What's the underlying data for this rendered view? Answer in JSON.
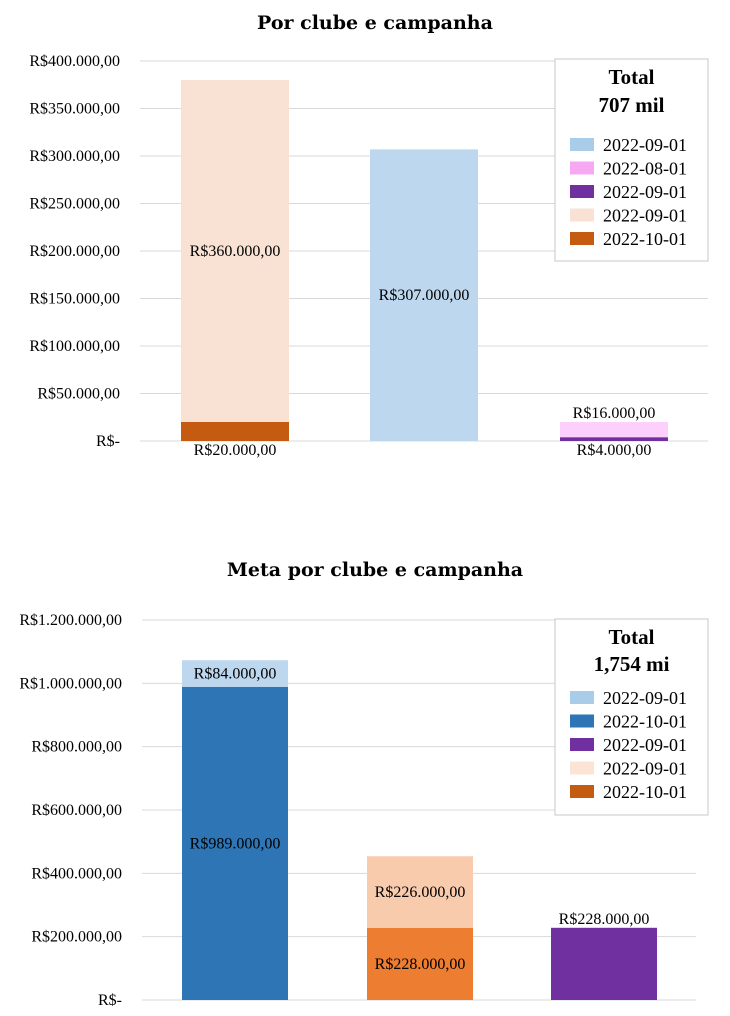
{
  "chart_data": [
    {
      "type": "bar",
      "stacked": true,
      "title": "Por clube e campanha",
      "ylim": [
        0,
        400000
      ],
      "y_ticks": [
        {
          "value": 0,
          "label": "R$-"
        },
        {
          "value": 50000,
          "label": "R$50.000,00"
        },
        {
          "value": 100000,
          "label": "R$100.000,00"
        },
        {
          "value": 150000,
          "label": "R$150.000,00"
        },
        {
          "value": 200000,
          "label": "R$200.000,00"
        },
        {
          "value": 250000,
          "label": "R$250.000,00"
        },
        {
          "value": 300000,
          "label": "R$300.000,00"
        },
        {
          "value": 350000,
          "label": "R$350.000,00"
        },
        {
          "value": 400000,
          "label": "R$400.000,00"
        }
      ],
      "grid": true,
      "legend_position": "top-right",
      "legend_title": [
        "Total",
        "707 mil"
      ],
      "legend": [
        {
          "label": "2022-09-01",
          "color": "#a9cce9"
        },
        {
          "label": "2022-08-01",
          "color": "#f7a8f3"
        },
        {
          "label": "2022-09-01",
          "color": "#7030a0"
        },
        {
          "label": "2022-09-01",
          "color": "#f9e2d4"
        },
        {
          "label": "2022-10-01",
          "color": "#c55a11"
        }
      ],
      "bars": [
        {
          "segments": [
            {
              "value": 20000,
              "label": "R$20.000,00",
              "color": "#c55a11",
              "label_pos": "below"
            },
            {
              "value": 360000,
              "label": "R$360.000,00",
              "color": "#f9e2d4",
              "label_pos": "center"
            }
          ]
        },
        {
          "segments": [
            {
              "value": 307000,
              "label": "R$307.000,00",
              "color": "#bdd7ee",
              "label_pos": "center"
            }
          ]
        },
        {
          "segments": [
            {
              "value": 4000,
              "label": "R$4.000,00",
              "color": "#7030a0",
              "label_pos": "below"
            },
            {
              "value": 16000,
              "label": "R$16.000,00",
              "color": "#fcd0fb",
              "label_pos": "above"
            }
          ]
        }
      ]
    },
    {
      "type": "bar",
      "stacked": true,
      "title": "Meta por clube e campanha",
      "ylim": [
        0,
        1200000
      ],
      "y_ticks": [
        {
          "value": 0,
          "label": "R$-"
        },
        {
          "value": 200000,
          "label": "R$200.000,00"
        },
        {
          "value": 400000,
          "label": "R$400.000,00"
        },
        {
          "value": 600000,
          "label": "R$600.000,00"
        },
        {
          "value": 800000,
          "label": "R$800.000,00"
        },
        {
          "value": 1000000,
          "label": "R$1.000.000,00"
        },
        {
          "value": 1200000,
          "label": "R$1.200.000,00"
        }
      ],
      "grid": true,
      "legend_position": "top-right",
      "legend_title": [
        "Total",
        "1,754 mi"
      ],
      "legend": [
        {
          "label": "2022-09-01",
          "color": "#a9cce9"
        },
        {
          "label": "2022-10-01",
          "color": "#2e75b6"
        },
        {
          "label": "2022-09-01",
          "color": "#7030a0"
        },
        {
          "label": "2022-09-01",
          "color": "#fbe3d6"
        },
        {
          "label": "2022-10-01",
          "color": "#c55a11"
        }
      ],
      "bars": [
        {
          "segments": [
            {
              "value": 989000,
              "label": "R$989.000,00",
              "color": "#2e75b6",
              "label_pos": "center"
            },
            {
              "value": 84000,
              "label": "R$84.000,00",
              "color": "#bdd7ee",
              "label_pos": "center"
            }
          ]
        },
        {
          "segments": [
            {
              "value": 228000,
              "label": "R$228.000,00",
              "color": "#ed7d31",
              "label_pos": "center"
            },
            {
              "value": 226000,
              "label": "R$226.000,00",
              "color": "#f8cbad",
              "label_pos": "center"
            }
          ]
        },
        {
          "segments": [
            {
              "value": 228000,
              "label": "R$228.000,00",
              "color": "#7030a0",
              "label_pos": "above"
            }
          ]
        }
      ]
    }
  ]
}
